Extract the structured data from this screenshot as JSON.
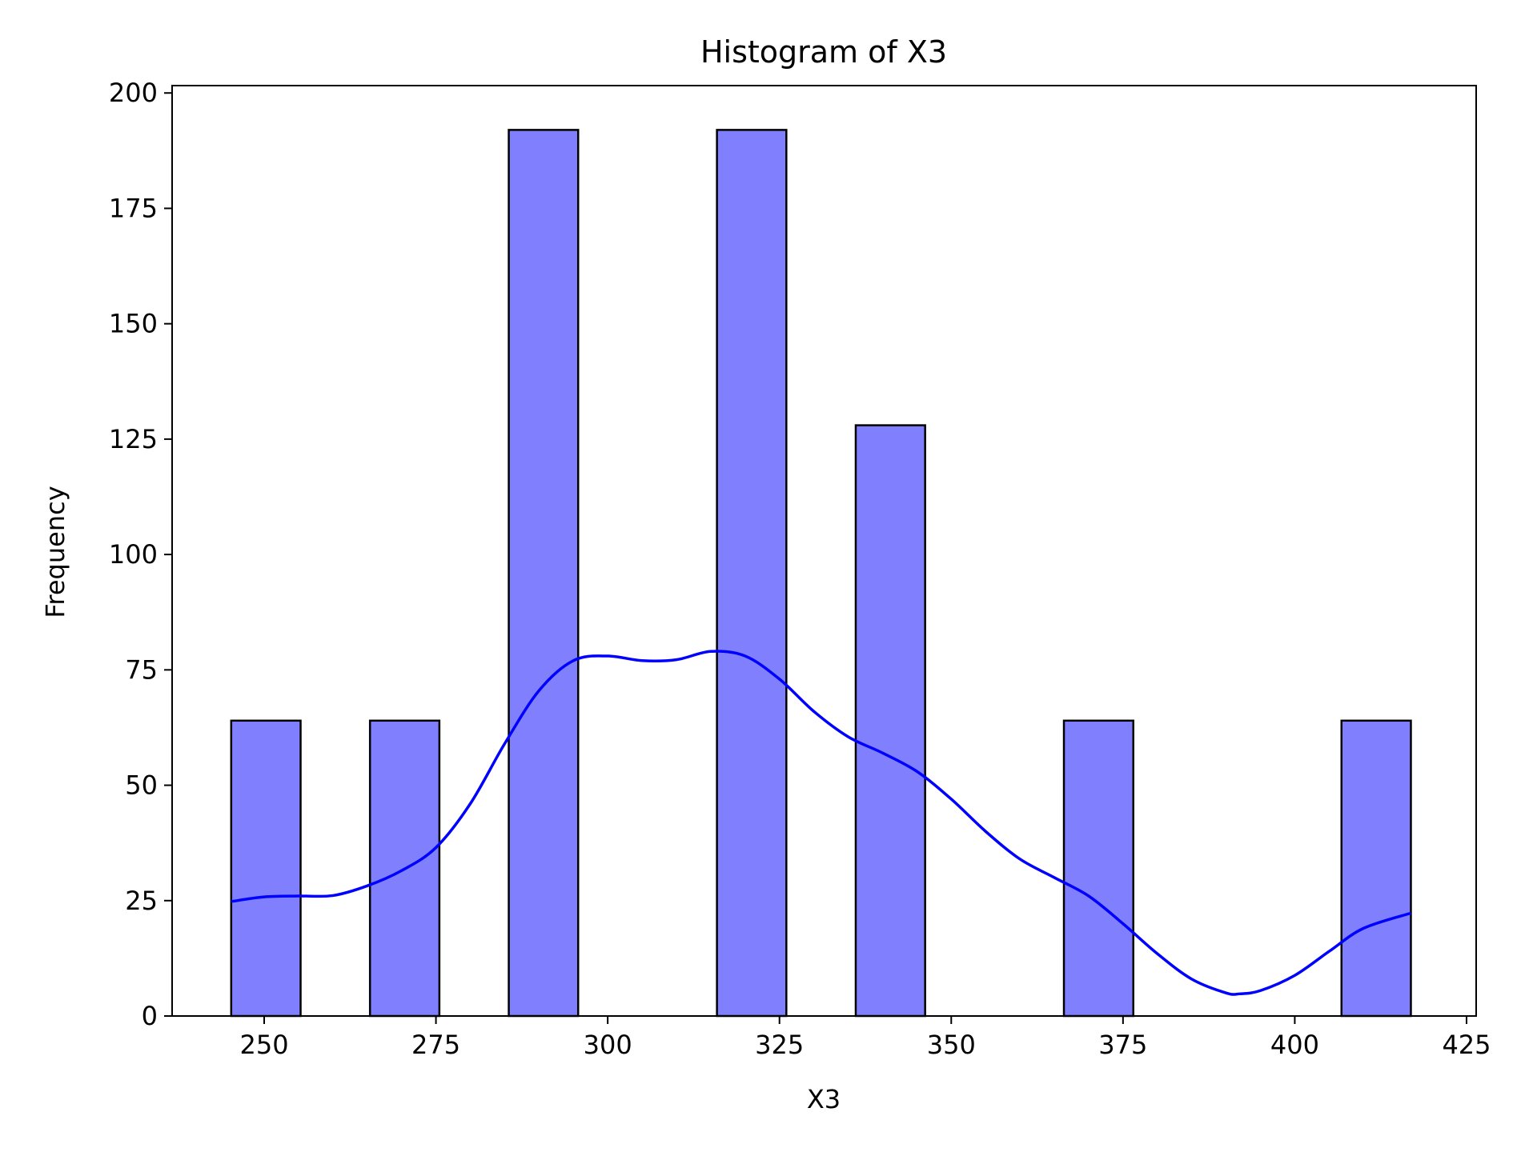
{
  "chart_data": {
    "type": "bar",
    "title": "Histogram of X3",
    "xlabel": "X3",
    "ylabel": "Frequency",
    "xlim": [
      236.6,
      426.4
    ],
    "ylim": [
      0,
      201.6
    ],
    "xticks": [
      250,
      275,
      300,
      325,
      350,
      375,
      400,
      425
    ],
    "yticks": [
      0,
      25,
      50,
      75,
      100,
      125,
      150,
      175,
      200
    ],
    "bins": [
      {
        "x0": 245.2,
        "x1": 255.3,
        "count": 64
      },
      {
        "x0": 265.4,
        "x1": 275.5,
        "count": 64
      },
      {
        "x0": 285.6,
        "x1": 295.7,
        "count": 192
      },
      {
        "x0": 315.9,
        "x1": 326.0,
        "count": 192
      },
      {
        "x0": 336.1,
        "x1": 346.2,
        "count": 128
      },
      {
        "x0": 366.4,
        "x1": 376.5,
        "count": 64
      },
      {
        "x0": 406.8,
        "x1": 416.9,
        "count": 64
      }
    ],
    "kde": [
      {
        "x": 245.2,
        "y": 24.8
      },
      {
        "x": 250.0,
        "y": 25.8
      },
      {
        "x": 255.0,
        "y": 26.0
      },
      {
        "x": 260.0,
        "y": 26.1
      },
      {
        "x": 265.0,
        "y": 28.2
      },
      {
        "x": 270.0,
        "y": 31.5
      },
      {
        "x": 275.0,
        "y": 36.5
      },
      {
        "x": 280.0,
        "y": 46.0
      },
      {
        "x": 285.0,
        "y": 59.0
      },
      {
        "x": 290.0,
        "y": 70.5
      },
      {
        "x": 295.0,
        "y": 77.0
      },
      {
        "x": 300.0,
        "y": 78.0
      },
      {
        "x": 305.0,
        "y": 77.0
      },
      {
        "x": 310.0,
        "y": 77.2
      },
      {
        "x": 315.0,
        "y": 79.0
      },
      {
        "x": 320.0,
        "y": 78.0
      },
      {
        "x": 325.0,
        "y": 73.0
      },
      {
        "x": 330.0,
        "y": 66.0
      },
      {
        "x": 335.0,
        "y": 60.5
      },
      {
        "x": 340.0,
        "y": 57.0
      },
      {
        "x": 345.0,
        "y": 53.0
      },
      {
        "x": 350.0,
        "y": 47.0
      },
      {
        "x": 355.0,
        "y": 40.0
      },
      {
        "x": 360.0,
        "y": 34.0
      },
      {
        "x": 365.0,
        "y": 30.0
      },
      {
        "x": 370.0,
        "y": 26.0
      },
      {
        "x": 375.0,
        "y": 20.0
      },
      {
        "x": 380.0,
        "y": 13.5
      },
      {
        "x": 385.0,
        "y": 8.0
      },
      {
        "x": 390.0,
        "y": 5.0
      },
      {
        "x": 392.0,
        "y": 4.8
      },
      {
        "x": 395.0,
        "y": 5.5
      },
      {
        "x": 400.0,
        "y": 8.8
      },
      {
        "x": 405.0,
        "y": 14.0
      },
      {
        "x": 410.0,
        "y": 19.0
      },
      {
        "x": 416.9,
        "y": 22.3
      }
    ],
    "colors": {
      "bar_fill": "#8080ff",
      "bar_edge": "#000000",
      "kde_line": "#0000ff"
    },
    "grid": false,
    "legend": "none"
  }
}
